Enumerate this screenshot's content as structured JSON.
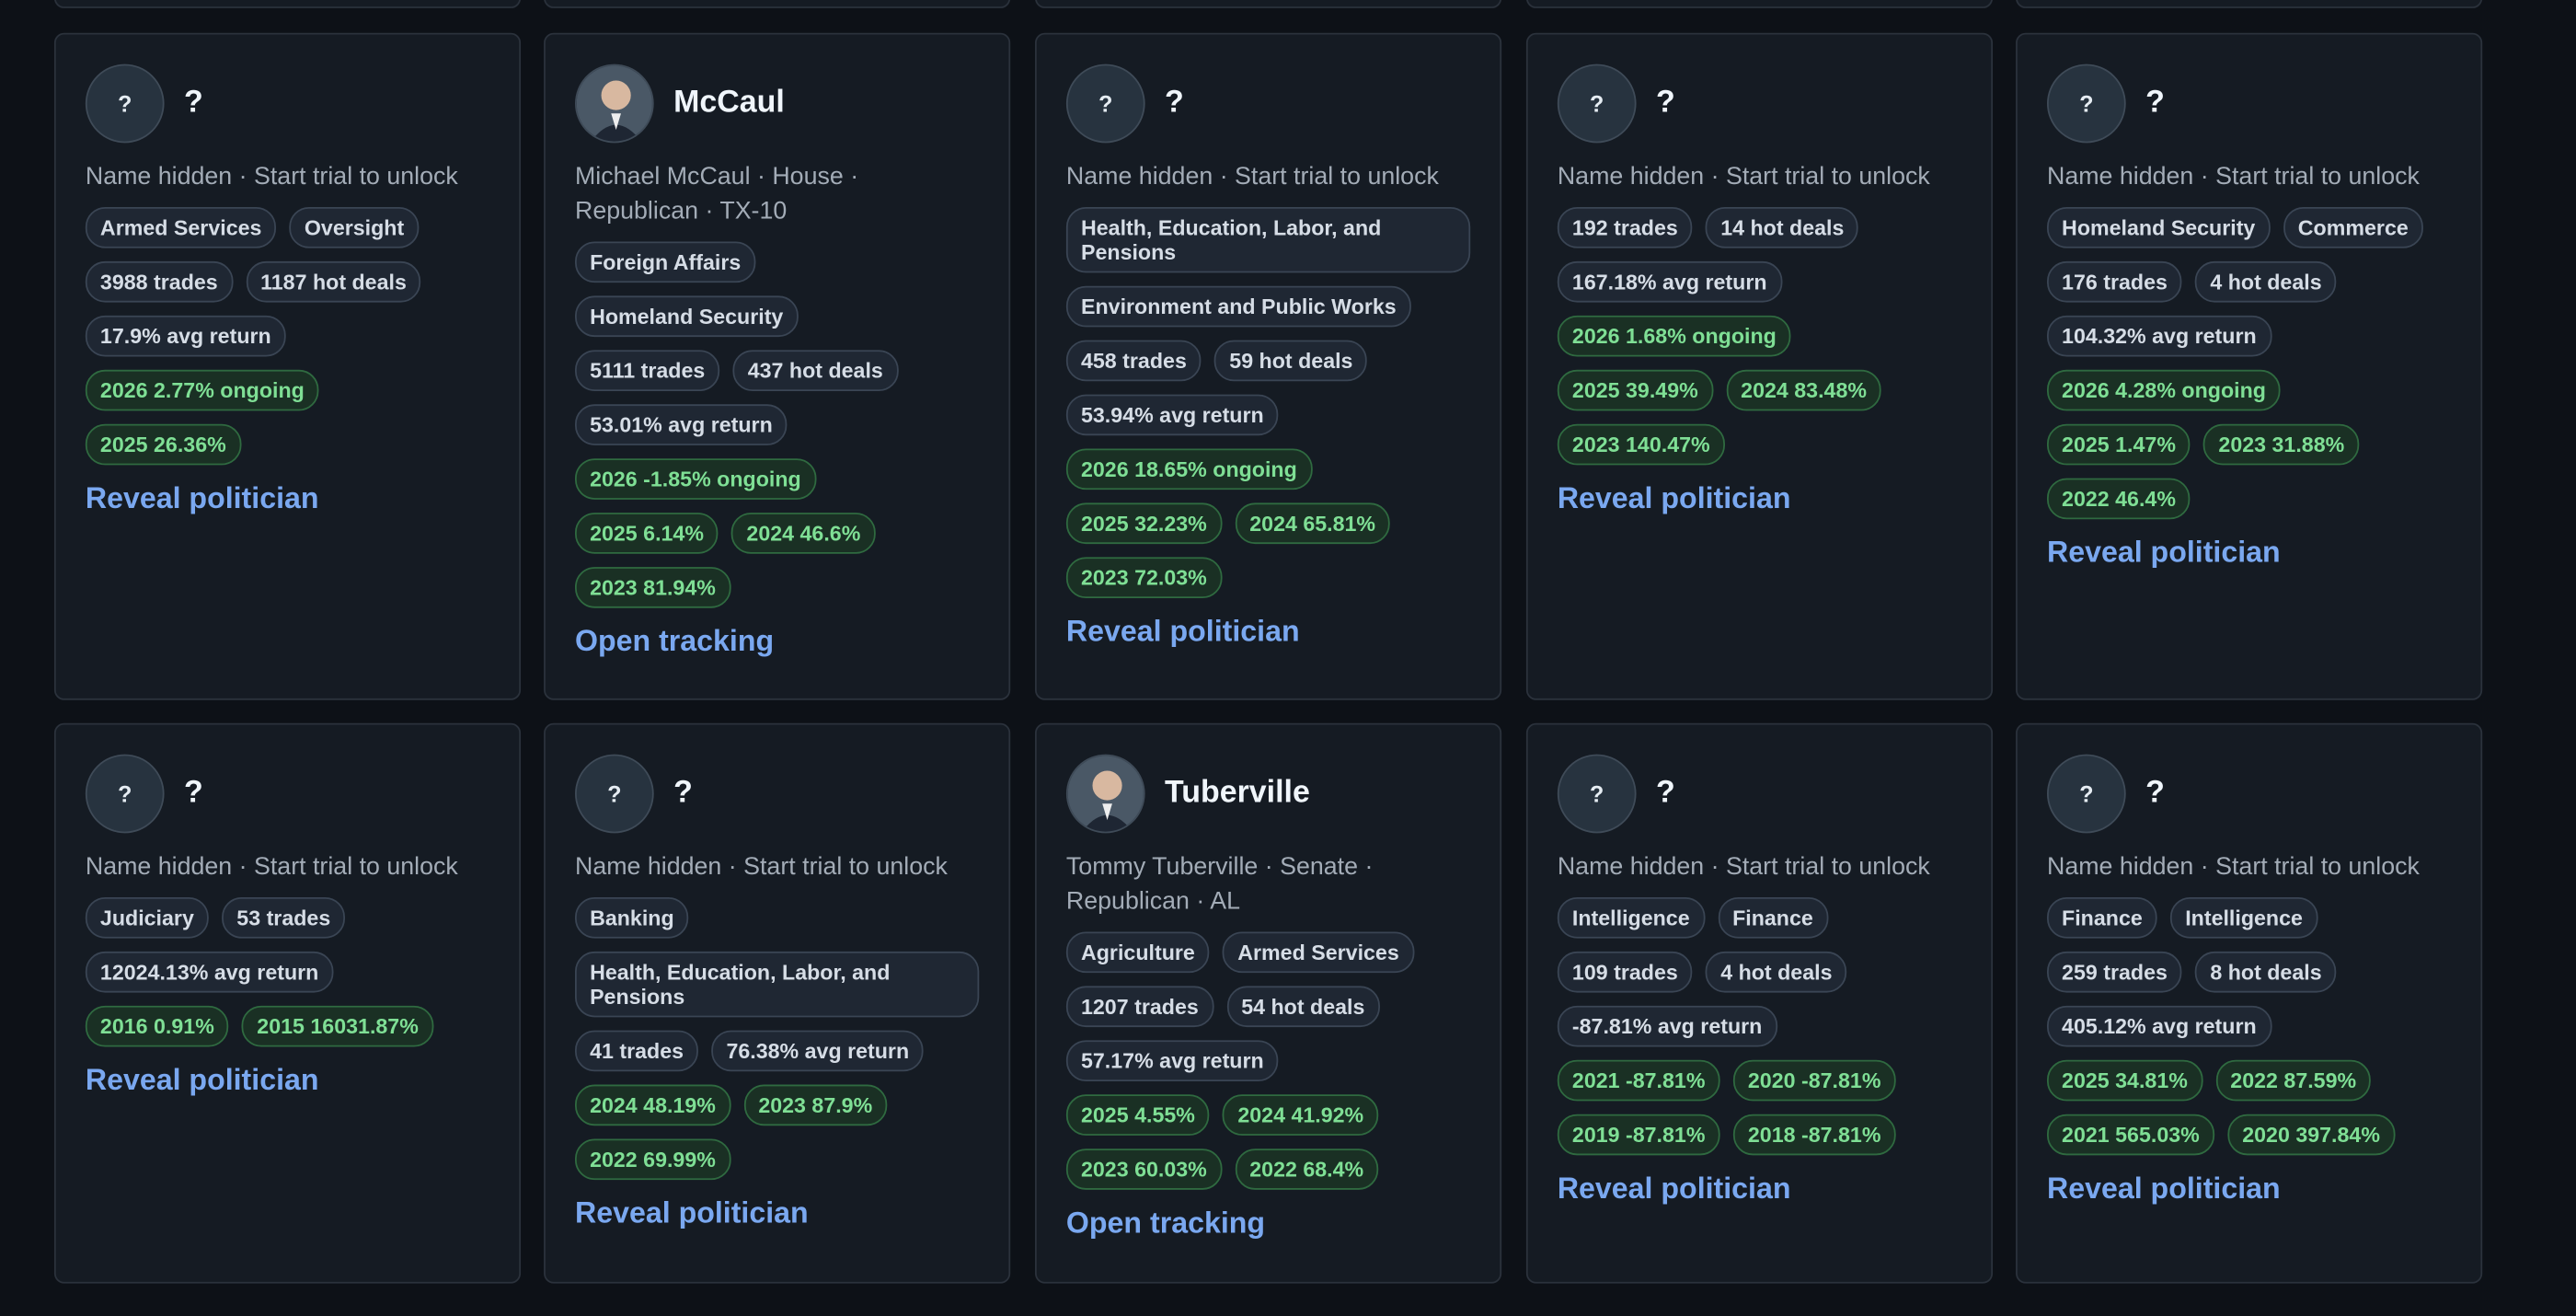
{
  "cards": [
    {
      "avatar": "?",
      "name": "?",
      "subtitle": "Name hidden · Start trial to unlock",
      "tag_rows": [
        {
          "tone": "neutral",
          "tags": [
            "Armed Services",
            "Oversight"
          ]
        },
        {
          "tone": "neutral",
          "tags": [
            "3988 trades",
            "1187 hot deals"
          ]
        },
        {
          "tone": "neutral",
          "tags": [
            "17.9% avg return"
          ]
        },
        {
          "tone": "positive",
          "tags": [
            "2026 2.77% ongoing"
          ]
        },
        {
          "tone": "positive",
          "tags": [
            "2025 26.36%"
          ]
        }
      ],
      "action": "Reveal politician"
    },
    {
      "name": "McCaul",
      "subtitle": "Michael McCaul · House · Republican · TX-10",
      "tag_rows": [
        {
          "tone": "neutral",
          "tags": [
            "Foreign Affairs"
          ]
        },
        {
          "tone": "neutral",
          "tags": [
            "Homeland Security"
          ]
        },
        {
          "tone": "neutral",
          "tags": [
            "5111 trades",
            "437 hot deals"
          ]
        },
        {
          "tone": "neutral",
          "tags": [
            "53.01% avg return"
          ]
        },
        {
          "tone": "positive",
          "tags": [
            "2026 -1.85% ongoing"
          ]
        },
        {
          "tone": "positive",
          "tags": [
            "2025 6.14%",
            "2024 46.6%"
          ]
        },
        {
          "tone": "positive",
          "tags": [
            "2023 81.94%"
          ]
        }
      ],
      "action": "Open tracking"
    },
    {
      "avatar": "?",
      "name": "?",
      "subtitle": "Name hidden · Start trial to unlock",
      "tag_rows": [
        {
          "tone": "neutral",
          "tags": [
            "Health, Education, Labor, and Pensions"
          ]
        },
        {
          "tone": "neutral",
          "tags": [
            "Environment and Public Works"
          ]
        },
        {
          "tone": "neutral",
          "tags": [
            "458 trades",
            "59 hot deals"
          ]
        },
        {
          "tone": "neutral",
          "tags": [
            "53.94% avg return"
          ]
        },
        {
          "tone": "positive",
          "tags": [
            "2026 18.65% ongoing"
          ]
        },
        {
          "tone": "positive",
          "tags": [
            "2025 32.23%",
            "2024 65.81%"
          ]
        },
        {
          "tone": "positive",
          "tags": [
            "2023 72.03%"
          ]
        }
      ],
      "action": "Reveal politician"
    },
    {
      "avatar": "?",
      "name": "?",
      "subtitle": "Name hidden · Start trial to unlock",
      "tag_rows": [
        {
          "tone": "neutral",
          "tags": [
            "192 trades",
            "14 hot deals"
          ]
        },
        {
          "tone": "neutral",
          "tags": [
            "167.18% avg return"
          ]
        },
        {
          "tone": "positive",
          "tags": [
            "2026 1.68% ongoing"
          ]
        },
        {
          "tone": "positive",
          "tags": [
            "2025 39.49%",
            "2024 83.48%"
          ]
        },
        {
          "tone": "positive",
          "tags": [
            "2023 140.47%"
          ]
        }
      ],
      "action": "Reveal politician"
    },
    {
      "avatar": "?",
      "name": "?",
      "subtitle": "Name hidden · Start trial to unlock",
      "tag_rows": [
        {
          "tone": "neutral",
          "tags": [
            "Homeland Security",
            "Commerce"
          ]
        },
        {
          "tone": "neutral",
          "tags": [
            "176 trades",
            "4 hot deals"
          ]
        },
        {
          "tone": "neutral",
          "tags": [
            "104.32% avg return"
          ]
        },
        {
          "tone": "positive",
          "tags": [
            "2026 4.28% ongoing"
          ]
        },
        {
          "tone": "positive",
          "tags": [
            "2025 1.47%",
            "2023 31.88%"
          ]
        },
        {
          "tone": "positive",
          "tags": [
            "2022 46.4%"
          ]
        }
      ],
      "action": "Reveal politician"
    },
    {
      "avatar": "?",
      "name": "?",
      "subtitle": "Name hidden · Start trial to unlock",
      "tag_rows": [
        {
          "tone": "neutral",
          "tags": [
            "Judiciary",
            "53 trades"
          ]
        },
        {
          "tone": "neutral",
          "tags": [
            "12024.13% avg return"
          ]
        },
        {
          "tone": "positive",
          "tags": [
            "2016 0.91%",
            "2015 16031.87%"
          ]
        }
      ],
      "action": "Reveal politician"
    },
    {
      "avatar": "?",
      "name": "?",
      "subtitle": "Name hidden · Start trial to unlock",
      "tag_rows": [
        {
          "tone": "neutral",
          "tags": [
            "Banking"
          ]
        },
        {
          "tone": "neutral",
          "tags": [
            "Health, Education, Labor, and Pensions"
          ]
        },
        {
          "tone": "neutral",
          "tags": [
            "41 trades",
            "76.38% avg return"
          ]
        },
        {
          "tone": "positive",
          "tags": [
            "2024 48.19%",
            "2023 87.9%"
          ]
        },
        {
          "tone": "positive",
          "tags": [
            "2022 69.99%"
          ]
        }
      ],
      "action": "Reveal politician"
    },
    {
      "name": "Tuberville",
      "subtitle": "Tommy Tuberville · Senate · Republican · AL",
      "tag_rows": [
        {
          "tone": "neutral",
          "tags": [
            "Agriculture",
            "Armed Services"
          ]
        },
        {
          "tone": "neutral",
          "tags": [
            "1207 trades",
            "54 hot deals"
          ]
        },
        {
          "tone": "neutral",
          "tags": [
            "57.17% avg return"
          ]
        },
        {
          "tone": "positive",
          "tags": [
            "2025 4.55%",
            "2024 41.92%"
          ]
        },
        {
          "tone": "positive",
          "tags": [
            "2023 60.03%",
            "2022 68.4%"
          ]
        }
      ],
      "action": "Open tracking"
    },
    {
      "avatar": "?",
      "name": "?",
      "subtitle": "Name hidden · Start trial to unlock",
      "tag_rows": [
        {
          "tone": "neutral",
          "tags": [
            "Intelligence",
            "Finance"
          ]
        },
        {
          "tone": "neutral",
          "tags": [
            "109 trades",
            "4 hot deals"
          ]
        },
        {
          "tone": "neutral",
          "tags": [
            "-87.81% avg return"
          ]
        },
        {
          "tone": "positive",
          "tags": [
            "2021 -87.81%",
            "2020 -87.81%"
          ]
        },
        {
          "tone": "positive",
          "tags": [
            "2019 -87.81%",
            "2018 -87.81%"
          ]
        }
      ],
      "action": "Reveal politician"
    },
    {
      "avatar": "?",
      "name": "?",
      "subtitle": "Name hidden · Start trial to unlock",
      "tag_rows": [
        {
          "tone": "neutral",
          "tags": [
            "Finance",
            "Intelligence"
          ]
        },
        {
          "tone": "neutral",
          "tags": [
            "259 trades",
            "8 hot deals"
          ]
        },
        {
          "tone": "neutral",
          "tags": [
            "405.12% avg return"
          ]
        },
        {
          "tone": "positive",
          "tags": [
            "2025 34.81%",
            "2022 87.59%"
          ]
        },
        {
          "tone": "positive",
          "tags": [
            "2021 565.03%",
            "2020 397.84%"
          ]
        }
      ],
      "action": "Reveal politician"
    }
  ]
}
